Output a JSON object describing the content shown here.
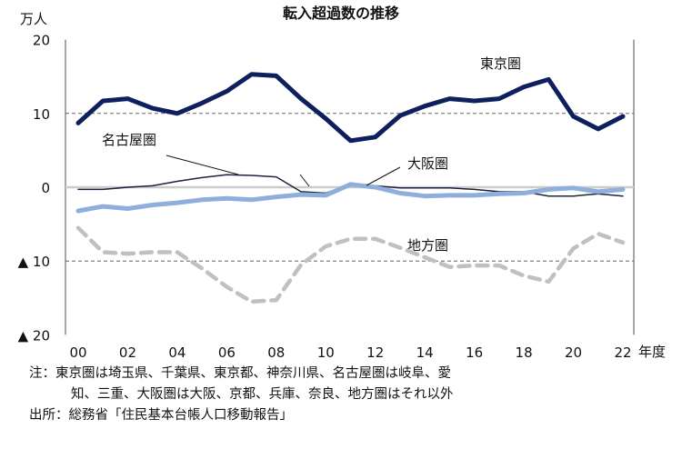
{
  "chart_data": {
    "type": "line",
    "title": "転入超過数の推移",
    "ylabel": "万人",
    "xlabel": "年度",
    "ylim": [
      -20,
      20
    ],
    "yticks": [
      {
        "v": 20,
        "label": "20"
      },
      {
        "v": 10,
        "label": "10"
      },
      {
        "v": 0,
        "label": "0"
      },
      {
        "v": -10,
        "label": "▲ 10"
      },
      {
        "v": -20,
        "label": "▲ 20"
      }
    ],
    "xticks": [
      "00",
      "02",
      "04",
      "06",
      "08",
      "10",
      "12",
      "14",
      "16",
      "18",
      "20",
      "22"
    ],
    "x": [
      2000,
      2001,
      2002,
      2003,
      2004,
      2005,
      2006,
      2007,
      2008,
      2009,
      2010,
      2011,
      2012,
      2013,
      2014,
      2015,
      2016,
      2017,
      2018,
      2019,
      2020,
      2021,
      2022
    ],
    "series": [
      {
        "name": "東京圏",
        "color": "#0d1f5c",
        "values": [
          8.7,
          11.7,
          12,
          10.7,
          10,
          11.4,
          13,
          15.3,
          15.1,
          12,
          9.3,
          6.3,
          6.8,
          9.7,
          11,
          12,
          11.7,
          12,
          13.6,
          14.6,
          9.6,
          7.9,
          9.6
        ]
      },
      {
        "name": "名古屋圏",
        "color": "#1a2340",
        "values": [
          -0.3,
          -0.3,
          0,
          0.2,
          0.8,
          1.3,
          1.7,
          1.6,
          1.4,
          -0.6,
          -0.8,
          0.4,
          0.2,
          -0.1,
          -0.1,
          -0.1,
          -0.3,
          -0.6,
          -0.6,
          -1.2,
          -1.2,
          -0.9,
          -1.2
        ]
      },
      {
        "name": "大阪圏",
        "color": "#8eaedb",
        "values": [
          -3.2,
          -2.6,
          -2.9,
          -2.4,
          -2.1,
          -1.7,
          -1.5,
          -1.7,
          -1.3,
          -1.0,
          -1.1,
          0.4,
          0.0,
          -0.8,
          -1.2,
          -1.1,
          -1.1,
          -0.9,
          -0.8,
          -0.3,
          -0.1,
          -0.6,
          -0.3
        ]
      },
      {
        "name": "地方圏",
        "color": "#c0c0c0",
        "values": [
          -5.5,
          -8.8,
          -9,
          -8.8,
          -8.8,
          -11,
          -13.5,
          -15.5,
          -15.3,
          -10.5,
          -8,
          -7,
          -7,
          -8.2,
          -9.5,
          -10.8,
          -10.6,
          -10.6,
          -12,
          -12.8,
          -8.3,
          -6.3,
          -7.5
        ]
      }
    ]
  },
  "notes": {
    "line1": "注：東京圏は埼玉県、千葉県、東京都、神奈川県、名古屋圏は岐阜、愛",
    "line2": "知、三重、大阪圏は大阪、京都、兵庫、奈良、地方圏はそれ以外",
    "source": "出所：総務省「住民基本台帳人口移動報告」"
  }
}
